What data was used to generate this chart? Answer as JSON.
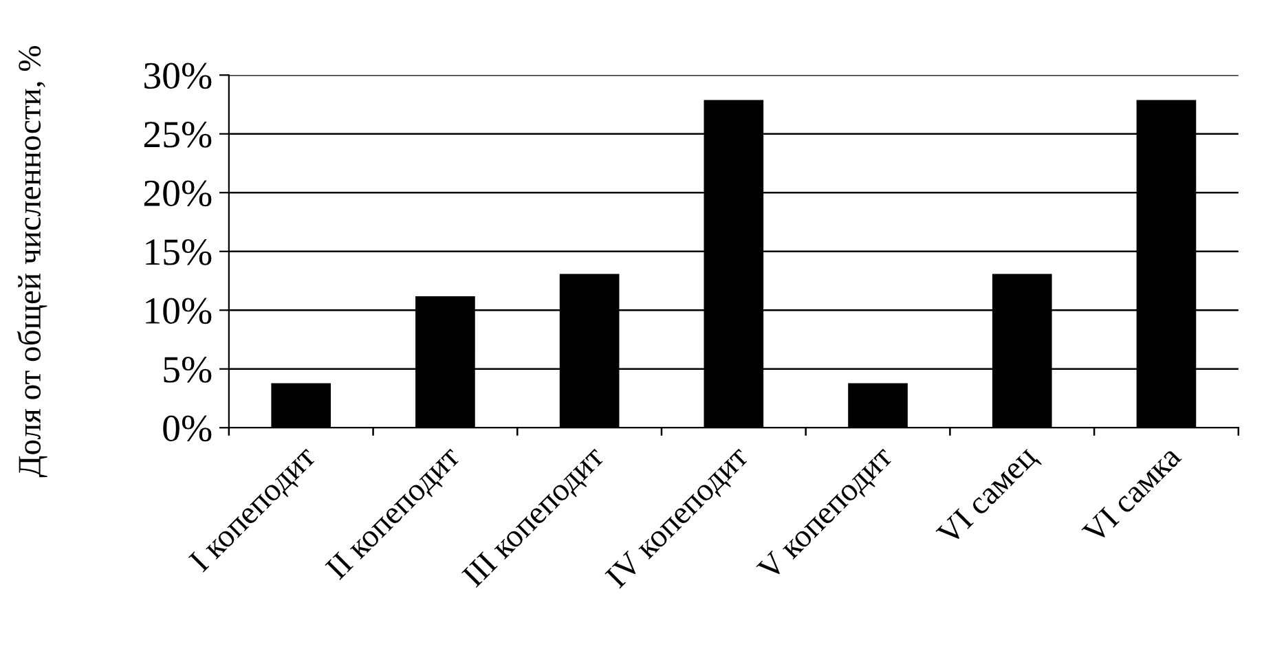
{
  "chart_data": {
    "type": "bar",
    "ylabel": "Доля от общей численности, %",
    "categories": [
      "I копеподит",
      "II копеподит",
      "III копеподит",
      "IV копеподит",
      "V копеподит",
      "VI самец",
      "VI самка"
    ],
    "values": [
      3.7,
      11.1,
      13.0,
      27.8,
      3.7,
      13.0,
      27.8
    ],
    "color": "#000000",
    "ylim": [
      0,
      30
    ],
    "yticks": [
      {
        "value": 0,
        "label": "0%"
      },
      {
        "value": 5,
        "label": "5%"
      },
      {
        "value": 10,
        "label": "10%"
      },
      {
        "value": 15,
        "label": "15%"
      },
      {
        "value": 20,
        "label": "20%"
      },
      {
        "value": 25,
        "label": "25%"
      },
      {
        "value": 30,
        "label": "30%"
      }
    ],
    "grid": "y"
  }
}
